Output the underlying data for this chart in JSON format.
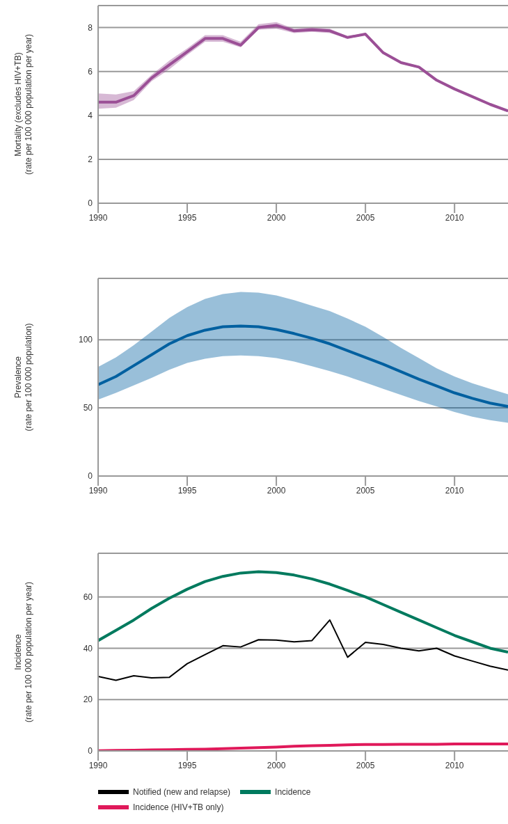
{
  "chart_data": [
    {
      "type": "line",
      "ylabel": "Mortality (excludes HIV+TB)\n(rate per 100 000 population per year)",
      "x": [
        1990,
        1991,
        1992,
        1993,
        1994,
        1995,
        1996,
        1997,
        1998,
        1999,
        2000,
        2001,
        2002,
        2003,
        2004,
        2005,
        2006,
        2007,
        2008,
        2009,
        2010,
        2011,
        2012,
        2013
      ],
      "xlim": [
        1990,
        2013
      ],
      "xticks": [
        1990,
        1995,
        2000,
        2005,
        2010
      ],
      "ylim": [
        0,
        9
      ],
      "yticks": [
        0,
        2,
        4,
        6,
        8
      ],
      "grid": "y",
      "series": [
        {
          "color": "#9b4f96",
          "values": [
            4.6,
            4.6,
            4.9,
            5.7,
            6.3,
            6.9,
            7.5,
            7.5,
            7.2,
            8.0,
            8.1,
            7.85,
            7.9,
            7.85,
            7.55,
            7.7,
            6.85,
            6.4,
            6.2,
            5.6,
            5.2,
            4.85,
            4.5,
            4.2
          ],
          "lower": [
            4.3,
            4.35,
            4.7,
            5.55,
            6.1,
            6.75,
            7.35,
            7.35,
            7.1,
            7.9,
            7.95,
            7.75,
            7.8,
            7.75,
            7.5,
            7.65,
            6.8,
            6.35,
            6.15,
            5.55,
            5.15,
            4.8,
            4.45,
            4.15
          ],
          "upper": [
            5.0,
            4.95,
            5.1,
            5.85,
            6.5,
            7.05,
            7.65,
            7.65,
            7.35,
            8.15,
            8.25,
            7.95,
            8.0,
            7.95,
            7.6,
            7.75,
            6.9,
            6.45,
            6.25,
            5.65,
            5.25,
            4.9,
            4.55,
            4.25
          ]
        }
      ]
    },
    {
      "type": "line",
      "ylabel": "Prevalence\n(rate per 100 000 population)",
      "x": [
        1990,
        1991,
        1992,
        1993,
        1994,
        1995,
        1996,
        1997,
        1998,
        1999,
        2000,
        2001,
        2002,
        2003,
        2004,
        2005,
        2006,
        2007,
        2008,
        2009,
        2010,
        2011,
        2012,
        2013
      ],
      "xlim": [
        1990,
        2013
      ],
      "xticks": [
        1990,
        1995,
        2000,
        2005,
        2010
      ],
      "ylim": [
        0,
        145
      ],
      "yticks": [
        0,
        50,
        100
      ],
      "grid": "y",
      "series": [
        {
          "color": "#0060a0",
          "values": [
            67,
            73,
            81,
            89,
            97,
            103,
            107,
            109.5,
            110,
            109.5,
            107.5,
            104.5,
            101,
            97,
            92,
            87,
            82,
            76.5,
            71,
            66,
            61,
            57,
            53.5,
            51
          ],
          "lower": [
            56,
            61,
            66.5,
            72,
            78,
            83,
            86,
            88,
            88.5,
            88,
            86.5,
            84,
            80.5,
            77,
            73,
            68.5,
            64,
            59.5,
            55,
            51,
            47,
            43.5,
            41,
            39
          ],
          "upper": [
            80,
            87,
            96,
            106,
            116,
            124,
            130,
            133.5,
            135,
            134.5,
            132.5,
            129,
            125,
            121,
            115.5,
            109.5,
            102,
            94,
            86.5,
            79,
            73,
            68,
            64,
            60
          ]
        }
      ]
    },
    {
      "type": "line",
      "ylabel": "Incidence\n(rate per 100 000 population per year)",
      "x": [
        1990,
        1991,
        1992,
        1993,
        1994,
        1995,
        1996,
        1997,
        1998,
        1999,
        2000,
        2001,
        2002,
        2003,
        2004,
        2005,
        2006,
        2007,
        2008,
        2009,
        2010,
        2011,
        2012,
        2013
      ],
      "xlim": [
        1990,
        2013
      ],
      "xticks": [
        1990,
        1995,
        2000,
        2005,
        2010
      ],
      "ylim": [
        0,
        77
      ],
      "yticks": [
        0,
        20,
        40,
        60
      ],
      "grid": "y",
      "legend": "bottom",
      "series": [
        {
          "name": "Notified (new and relapse)",
          "color": "#000000",
          "values": [
            29,
            27.5,
            29.3,
            28.5,
            28.7,
            34,
            37.5,
            41,
            40.5,
            43.3,
            43.2,
            42.5,
            43,
            51,
            36.5,
            42.3,
            41.5,
            40,
            39,
            40,
            37,
            35,
            33,
            31.5
          ]
        },
        {
          "name": "Incidence",
          "color": "#007a5e",
          "values": [
            43,
            47,
            51,
            55.5,
            59.5,
            63,
            66,
            68,
            69.3,
            69.8,
            69.5,
            68.5,
            67,
            65,
            62.5,
            60,
            57,
            54,
            51,
            48,
            45,
            42.5,
            40,
            38.5
          ]
        },
        {
          "name": "Incidence (HIV+TB only)",
          "color": "#e0195a",
          "values": [
            0.1,
            0.2,
            0.3,
            0.4,
            0.5,
            0.6,
            0.7,
            0.9,
            1.1,
            1.3,
            1.5,
            1.8,
            2.0,
            2.2,
            2.4,
            2.5,
            2.5,
            2.6,
            2.6,
            2.6,
            2.7,
            2.7,
            2.7,
            2.7
          ]
        }
      ]
    }
  ]
}
